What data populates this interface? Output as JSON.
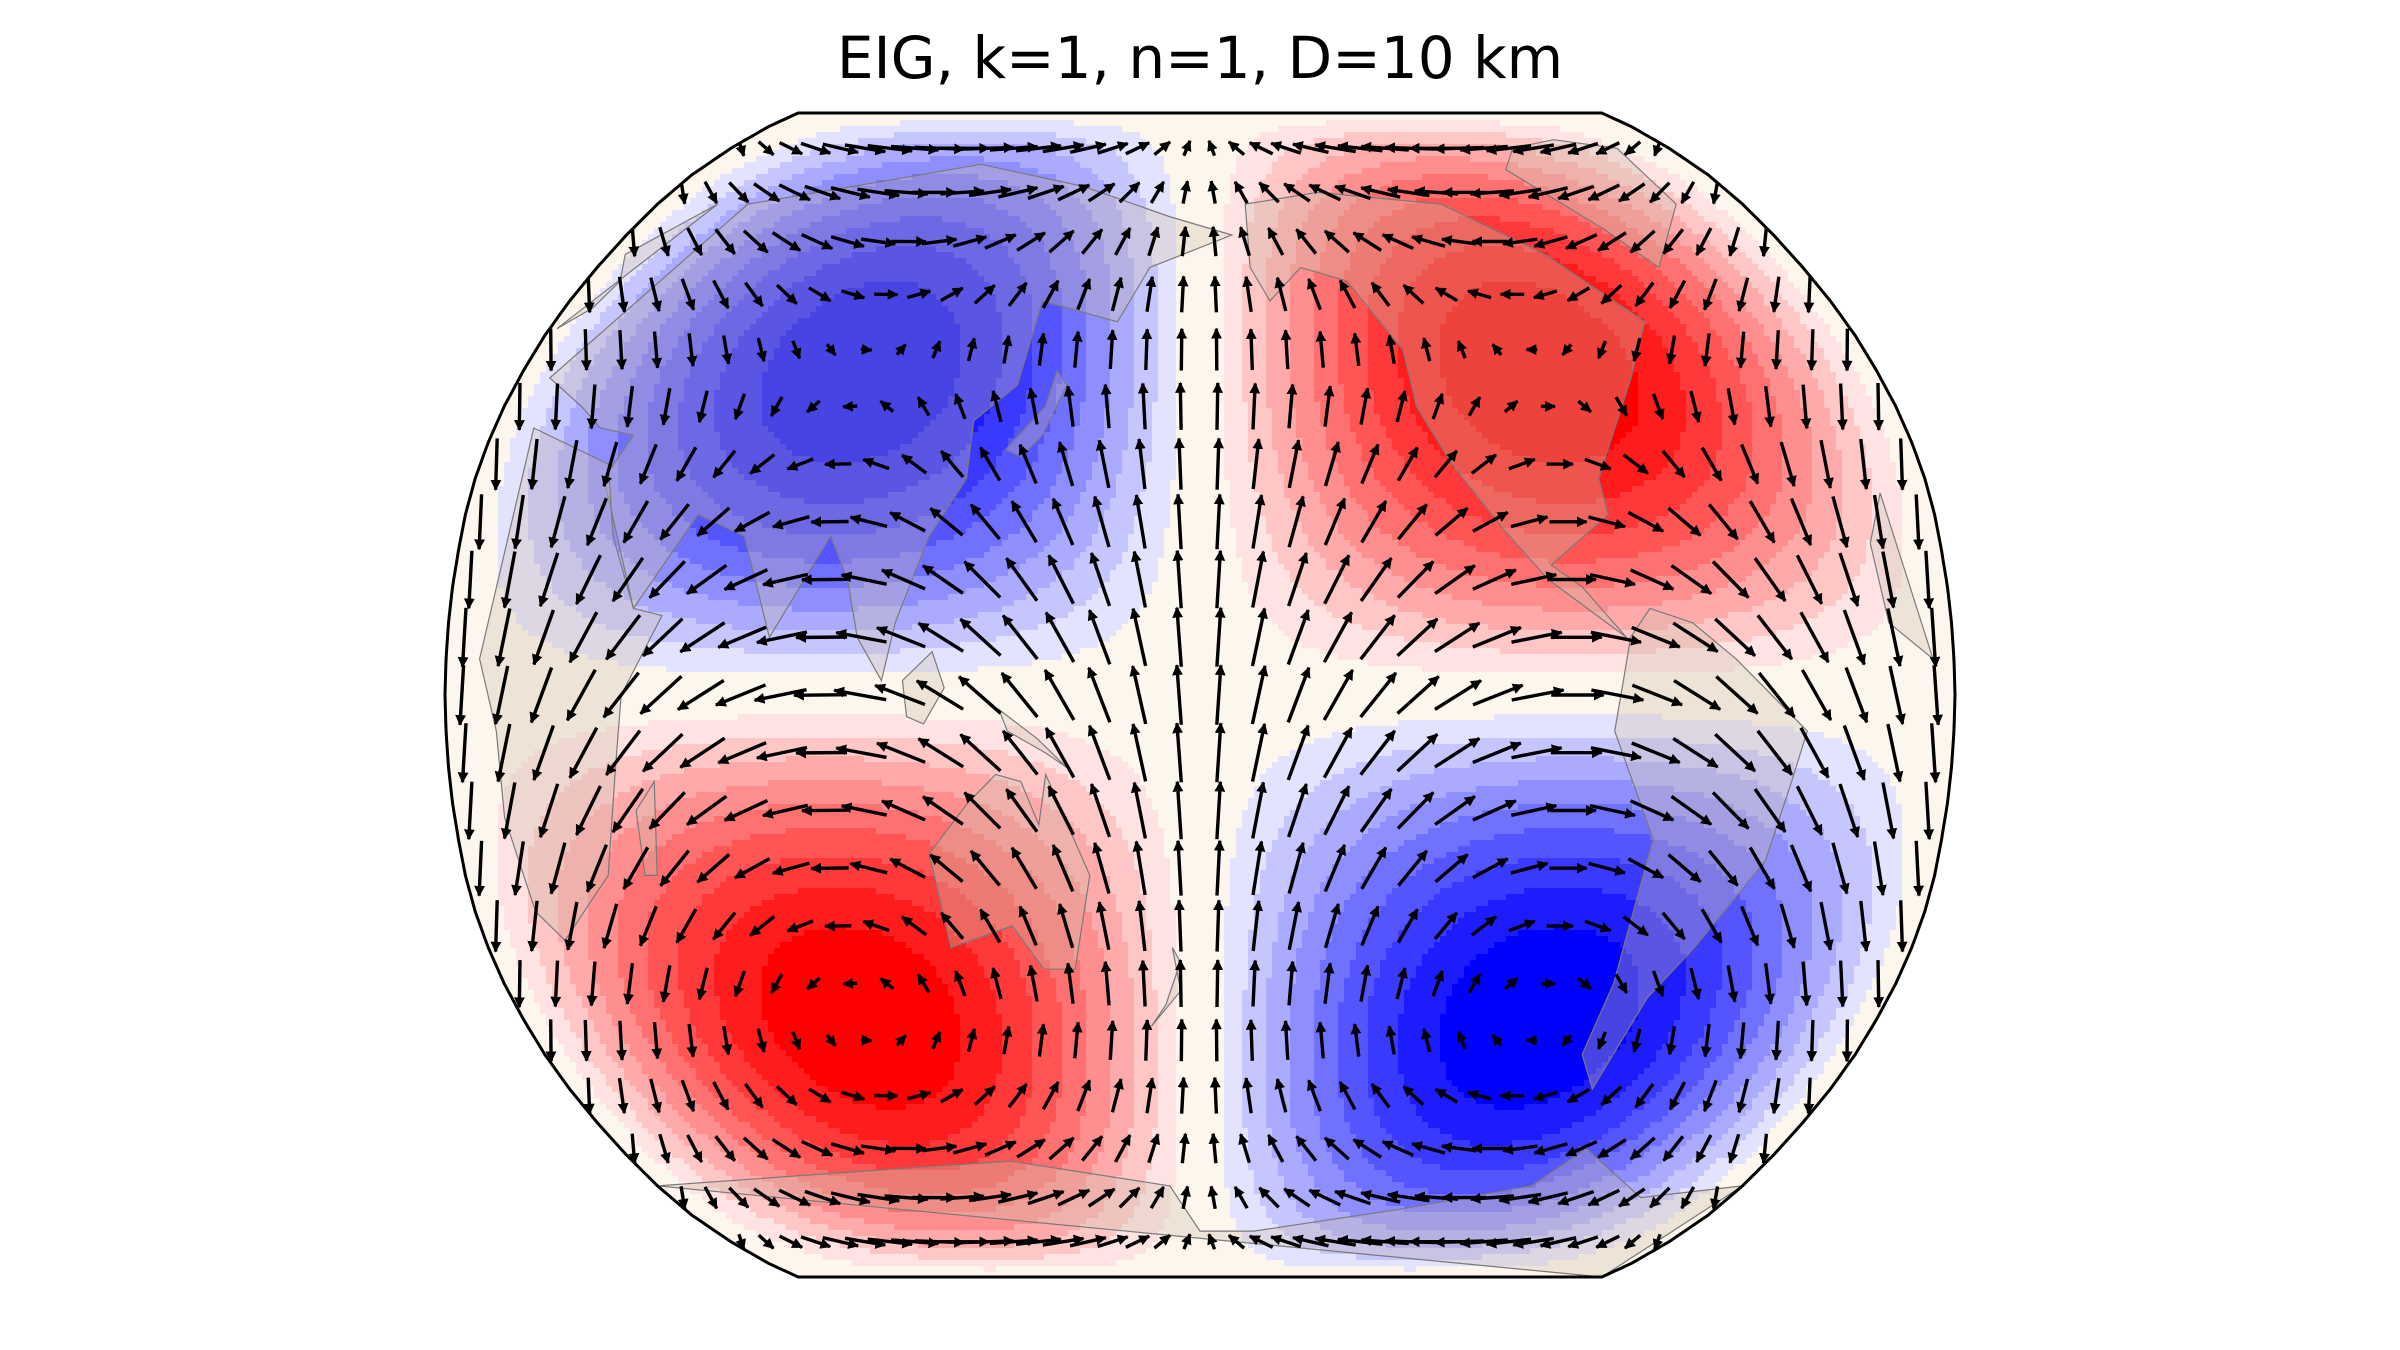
{
  "title": "EIG, k=1, n=1, D=10 km",
  "map": {
    "projection": "Robinson",
    "central_longitude": 180,
    "field": "geopotential-anomaly",
    "background_color": "#fdf6ec",
    "land_color": "#cdbfae",
    "coastline_color": "#7a7a7a",
    "positive_color": "#ff0000",
    "negative_color": "#0000ff",
    "arrow_color": "#000000",
    "contour_levels": 9,
    "grid_on": false,
    "legend": "none"
  },
  "chart_data": {
    "type": "heatmap",
    "title": "EIG, k=1, n=1, D=10 km",
    "wavenumber_k": 1,
    "meridional_mode_n": 1,
    "equivalent_depth_km": 10,
    "cells": [
      {
        "quadrant": "northwest",
        "sign": "negative",
        "center_lat": 30,
        "center_lon": 135
      },
      {
        "quadrant": "northeast",
        "sign": "positive",
        "center_lat": 30,
        "center_lon": 315
      },
      {
        "quadrant": "southwest",
        "sign": "positive",
        "center_lat": -30,
        "center_lon": 135
      },
      {
        "quadrant": "southeast",
        "sign": "negative",
        "center_lat": -30,
        "center_lon": 315
      }
    ],
    "nodal_lines": {
      "latitude": 0,
      "longitude": 225
    },
    "vectors": "wind anomaly arrows"
  }
}
